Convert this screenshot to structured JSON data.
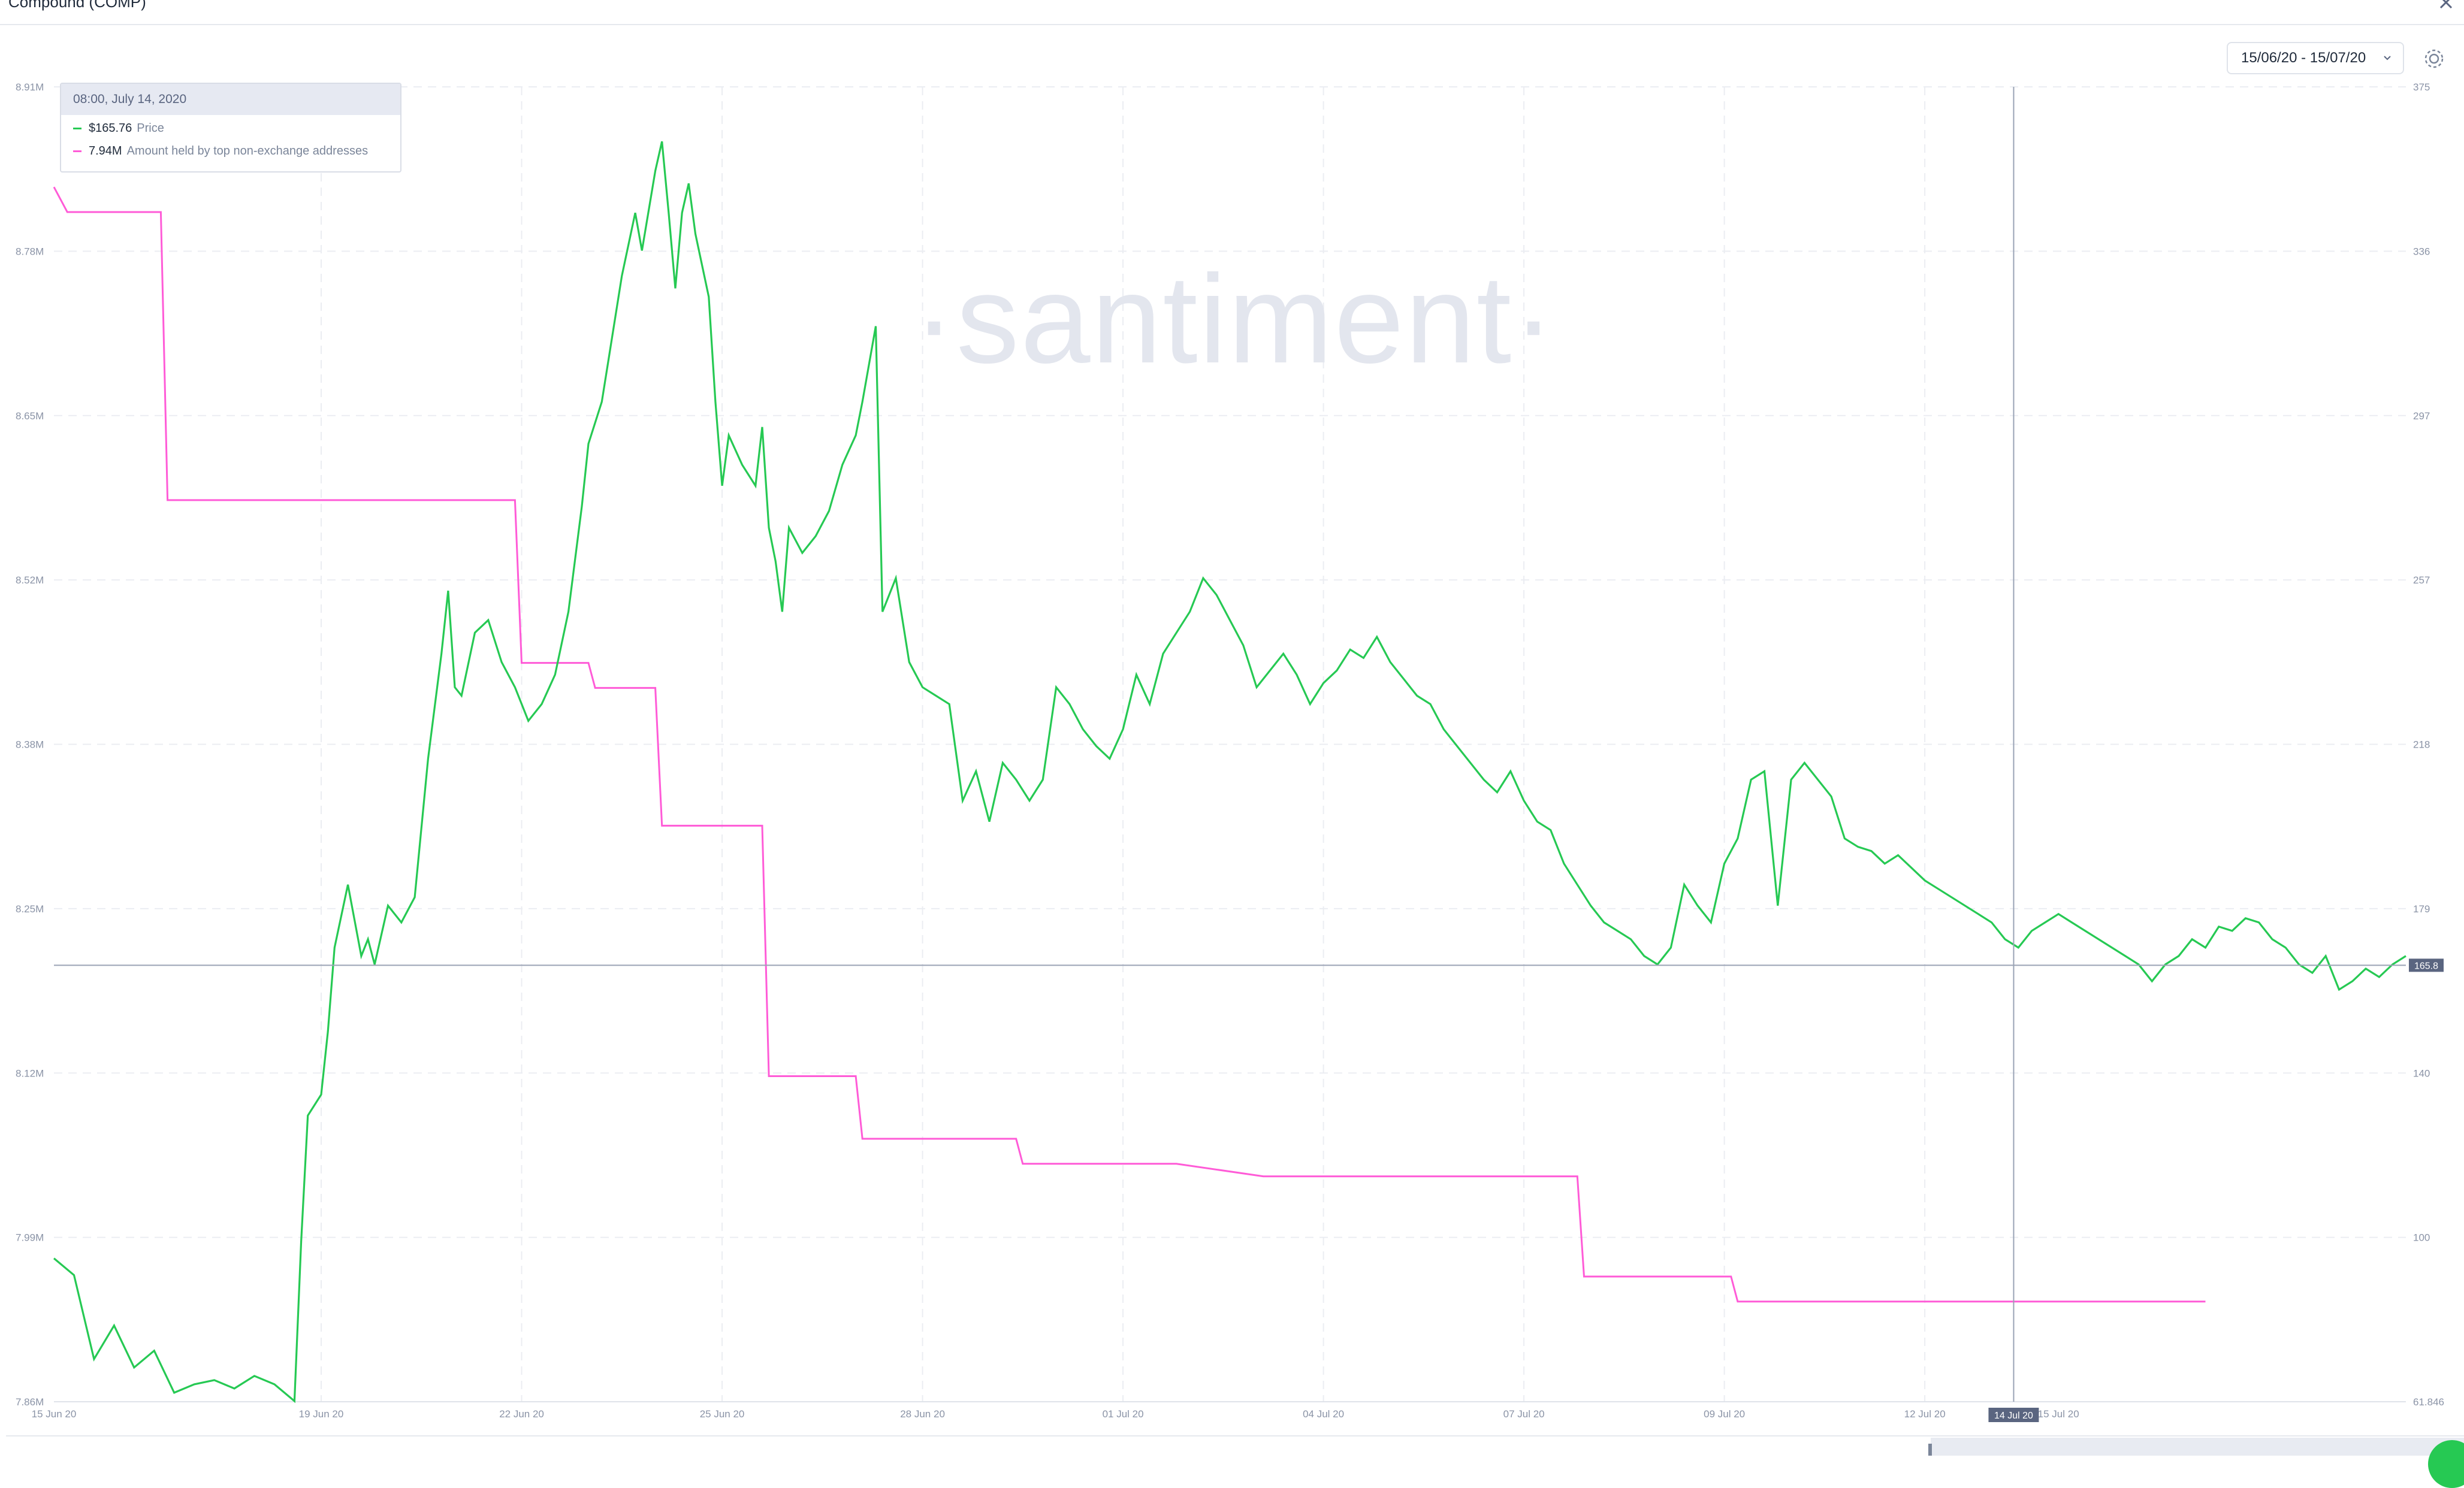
{
  "window": {
    "title": "Compound (COMP)"
  },
  "controls": {
    "date_range": "15/06/20 - 15/07/20"
  },
  "watermark": "·santiment·",
  "tooltip": {
    "header": "08:00, July 14, 2020",
    "rows": [
      {
        "value": "$165.76",
        "label": "Price",
        "color": "#26c953"
      },
      {
        "value": "7.94M",
        "label": "Amount held by top non-exchange addresses",
        "color": "#ff5bd7"
      }
    ]
  },
  "markers": {
    "crosshair_date": "14 Jul 20",
    "price_label": "165.8"
  },
  "chart_data": {
    "type": "line",
    "x_ticks": [
      "15 Jun 20",
      "19 Jun 20",
      "22 Jun 20",
      "25 Jun 20",
      "28 Jun 20",
      "01 Jul 20",
      "04 Jul 20",
      "07 Jul 20",
      "09 Jul 20",
      "12 Jul 20",
      "15 Jul 20"
    ],
    "x_tick_days": [
      0,
      4,
      7,
      10,
      13,
      16,
      19,
      22,
      25,
      28,
      30
    ],
    "left_axis": {
      "ticks": [
        "7.86M",
        "7.99M",
        "8.12M",
        "8.25M",
        "8.38M",
        "8.52M",
        "8.65M",
        "8.78M",
        "8.91M"
      ],
      "range": [
        7.86,
        8.91
      ]
    },
    "right_axis": {
      "ticks": [
        "61.846",
        "100",
        "140",
        "179",
        "218",
        "257",
        "297",
        "336",
        "375"
      ],
      "range": [
        61.846,
        375
      ]
    },
    "grid": true,
    "series": [
      {
        "name": "Price",
        "axis": "right",
        "color": "#26c953",
        "points": [
          [
            0.0,
            96
          ],
          [
            0.3,
            92
          ],
          [
            0.6,
            72
          ],
          [
            0.9,
            80
          ],
          [
            1.2,
            70
          ],
          [
            1.5,
            74
          ],
          [
            1.8,
            64
          ],
          [
            2.1,
            66
          ],
          [
            2.4,
            67
          ],
          [
            2.7,
            65
          ],
          [
            3.0,
            68
          ],
          [
            3.3,
            66
          ],
          [
            3.6,
            62
          ],
          [
            3.7,
            100
          ],
          [
            3.8,
            130
          ],
          [
            4.0,
            135
          ],
          [
            4.1,
            150
          ],
          [
            4.2,
            170
          ],
          [
            4.4,
            185
          ],
          [
            4.6,
            168
          ],
          [
            4.7,
            172
          ],
          [
            4.8,
            166
          ],
          [
            5.0,
            180
          ],
          [
            5.2,
            176
          ],
          [
            5.4,
            182
          ],
          [
            5.6,
            215
          ],
          [
            5.8,
            240
          ],
          [
            5.9,
            255
          ],
          [
            6.0,
            232
          ],
          [
            6.1,
            230
          ],
          [
            6.3,
            245
          ],
          [
            6.5,
            248
          ],
          [
            6.7,
            238
          ],
          [
            6.9,
            232
          ],
          [
            7.1,
            224
          ],
          [
            7.3,
            228
          ],
          [
            7.5,
            235
          ],
          [
            7.7,
            250
          ],
          [
            7.9,
            275
          ],
          [
            8.0,
            290
          ],
          [
            8.2,
            300
          ],
          [
            8.3,
            310
          ],
          [
            8.5,
            330
          ],
          [
            8.7,
            345
          ],
          [
            8.8,
            336
          ],
          [
            9.0,
            355
          ],
          [
            9.1,
            362
          ],
          [
            9.2,
            345
          ],
          [
            9.3,
            327
          ],
          [
            9.4,
            345
          ],
          [
            9.5,
            352
          ],
          [
            9.6,
            340
          ],
          [
            9.8,
            325
          ],
          [
            9.9,
            300
          ],
          [
            10.0,
            280
          ],
          [
            10.1,
            292
          ],
          [
            10.3,
            285
          ],
          [
            10.5,
            280
          ],
          [
            10.6,
            294
          ],
          [
            10.7,
            270
          ],
          [
            10.8,
            262
          ],
          [
            10.9,
            250
          ],
          [
            11.0,
            270
          ],
          [
            11.2,
            264
          ],
          [
            11.4,
            268
          ],
          [
            11.6,
            274
          ],
          [
            11.8,
            285
          ],
          [
            12.0,
            292
          ],
          [
            12.1,
            300
          ],
          [
            12.3,
            318
          ],
          [
            12.4,
            250
          ],
          [
            12.6,
            258
          ],
          [
            12.8,
            238
          ],
          [
            13.0,
            232
          ],
          [
            13.2,
            230
          ],
          [
            13.4,
            228
          ],
          [
            13.6,
            205
          ],
          [
            13.8,
            212
          ],
          [
            14.0,
            200
          ],
          [
            14.2,
            214
          ],
          [
            14.4,
            210
          ],
          [
            14.6,
            205
          ],
          [
            14.8,
            210
          ],
          [
            15.0,
            232
          ],
          [
            15.2,
            228
          ],
          [
            15.4,
            222
          ],
          [
            15.6,
            218
          ],
          [
            15.8,
            215
          ],
          [
            16.0,
            222
          ],
          [
            16.2,
            235
          ],
          [
            16.4,
            228
          ],
          [
            16.6,
            240
          ],
          [
            16.8,
            245
          ],
          [
            17.0,
            250
          ],
          [
            17.2,
            258
          ],
          [
            17.4,
            254
          ],
          [
            17.6,
            248
          ],
          [
            17.8,
            242
          ],
          [
            18.0,
            232
          ],
          [
            18.2,
            236
          ],
          [
            18.4,
            240
          ],
          [
            18.6,
            235
          ],
          [
            18.8,
            228
          ],
          [
            19.0,
            233
          ],
          [
            19.2,
            236
          ],
          [
            19.4,
            241
          ],
          [
            19.6,
            239
          ],
          [
            19.8,
            244
          ],
          [
            20.0,
            238
          ],
          [
            20.2,
            234
          ],
          [
            20.4,
            230
          ],
          [
            20.6,
            228
          ],
          [
            20.8,
            222
          ],
          [
            21.0,
            218
          ],
          [
            21.2,
            214
          ],
          [
            21.4,
            210
          ],
          [
            21.6,
            207
          ],
          [
            21.8,
            212
          ],
          [
            22.0,
            205
          ],
          [
            22.2,
            200
          ],
          [
            22.4,
            198
          ],
          [
            22.6,
            190
          ],
          [
            22.8,
            185
          ],
          [
            23.0,
            180
          ],
          [
            23.2,
            176
          ],
          [
            23.4,
            174
          ],
          [
            23.6,
            172
          ],
          [
            23.8,
            168
          ],
          [
            24.0,
            166
          ],
          [
            24.2,
            170
          ],
          [
            24.4,
            185
          ],
          [
            24.6,
            180
          ],
          [
            24.8,
            176
          ],
          [
            25.0,
            190
          ],
          [
            25.2,
            196
          ],
          [
            25.4,
            210
          ],
          [
            25.6,
            212
          ],
          [
            25.8,
            180
          ],
          [
            26.0,
            210
          ],
          [
            26.2,
            214
          ],
          [
            26.4,
            210
          ],
          [
            26.6,
            206
          ],
          [
            26.8,
            196
          ],
          [
            27.0,
            194
          ],
          [
            27.2,
            193
          ],
          [
            27.4,
            190
          ],
          [
            27.6,
            192
          ],
          [
            27.8,
            189
          ],
          [
            28.0,
            186
          ],
          [
            28.2,
            184
          ],
          [
            28.4,
            182
          ],
          [
            28.6,
            180
          ],
          [
            28.8,
            178
          ],
          [
            29.0,
            176
          ],
          [
            29.2,
            172
          ],
          [
            29.4,
            170
          ],
          [
            29.6,
            174
          ],
          [
            29.8,
            176
          ],
          [
            30.0,
            178
          ],
          [
            30.2,
            176
          ],
          [
            30.4,
            174
          ],
          [
            30.6,
            172
          ],
          [
            30.8,
            170
          ],
          [
            31.0,
            168
          ],
          [
            31.2,
            166
          ],
          [
            31.4,
            162
          ],
          [
            31.6,
            166
          ],
          [
            31.8,
            168
          ],
          [
            32.0,
            172
          ],
          [
            32.2,
            170
          ],
          [
            32.4,
            175
          ],
          [
            32.6,
            174
          ],
          [
            32.8,
            177
          ],
          [
            33.0,
            176
          ],
          [
            33.2,
            172
          ],
          [
            33.4,
            170
          ],
          [
            33.6,
            166
          ],
          [
            33.8,
            164
          ],
          [
            34.0,
            168
          ],
          [
            34.2,
            160
          ],
          [
            34.4,
            162
          ],
          [
            34.6,
            165
          ],
          [
            34.8,
            163
          ],
          [
            35.0,
            166
          ],
          [
            35.2,
            168
          ]
        ]
      },
      {
        "name": "Amount held by top non-exchange addresses",
        "axis": "left",
        "color": "#ff5bd7",
        "points": [
          [
            0.0,
            8.83
          ],
          [
            0.2,
            8.81
          ],
          [
            1.6,
            8.81
          ],
          [
            1.7,
            8.58
          ],
          [
            6.9,
            8.58
          ],
          [
            7.0,
            8.45
          ],
          [
            7.3,
            8.45
          ],
          [
            8.0,
            8.45
          ],
          [
            8.1,
            8.43
          ],
          [
            9.0,
            8.43
          ],
          [
            9.1,
            8.32
          ],
          [
            10.6,
            8.32
          ],
          [
            10.7,
            8.12
          ],
          [
            12.0,
            8.12
          ],
          [
            12.1,
            8.07
          ],
          [
            14.4,
            8.07
          ],
          [
            14.5,
            8.05
          ],
          [
            16.7,
            8.05
          ],
          [
            16.8,
            8.05
          ],
          [
            18.1,
            8.04
          ],
          [
            22.8,
            8.04
          ],
          [
            22.9,
            7.96
          ],
          [
            25.1,
            7.96
          ],
          [
            25.2,
            7.94
          ],
          [
            32.2,
            7.94
          ]
        ]
      }
    ],
    "x_max_day": 35.2
  }
}
